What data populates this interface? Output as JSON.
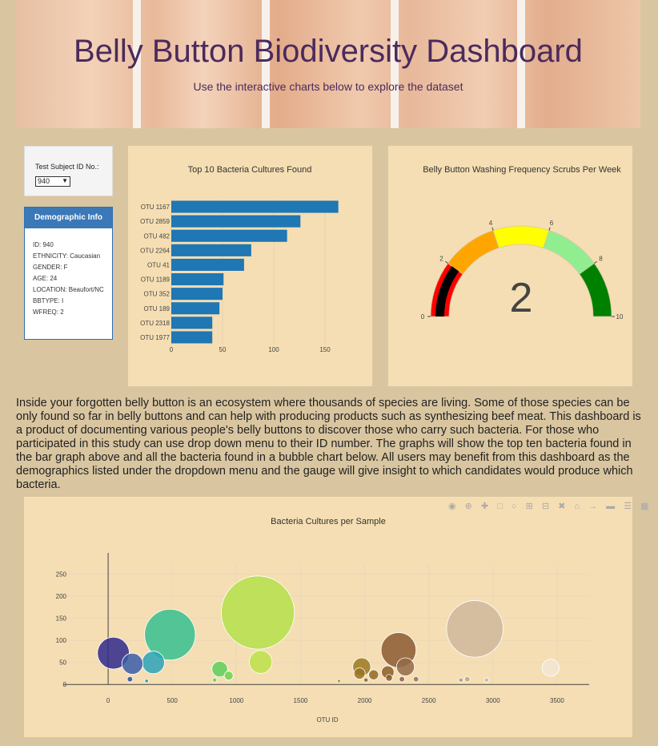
{
  "header": {
    "title": "Belly Button Biodiversity Dashboard",
    "subtitle": "Use the interactive charts below to explore the dataset"
  },
  "selector": {
    "label": "Test Subject ID No.:",
    "value": "940"
  },
  "demographics": {
    "title": "Demographic Info",
    "rows": [
      "ID: 940",
      "ETHNICITY: Caucasian",
      "GENDER: F",
      "AGE: 24",
      "LOCATION: Beaufort/NC",
      "BBTYPE: I",
      "WFREQ: 2"
    ]
  },
  "paragraph": "Inside your forgotten belly button is an ecosystem where thousands of species are living. Some of those species can be only found so far in belly buttons and can help with producing products such as synthesizing beef meat. This dashboard is a product of documenting various people's belly buttons to discover those who carry such bacteria. For those who participated in this study can use drop down menu to their ID number. The graphs will show the top ten bacteria found in the bar graph above and all the bacteria found in a bubble chart below. All users may benefit from this dashboard as the demographics listed under the dropdown menu and the gauge will give insight to which candidates would produce which bacteria.",
  "chart_data": [
    {
      "type": "bar",
      "title": "Top 10 Bacteria Cultures Found",
      "categories": [
        "OTU 1167",
        "OTU 2859",
        "OTU 482",
        "OTU 2264",
        "OTU 41",
        "OTU 1189",
        "OTU 352",
        "OTU 189",
        "OTU 2318",
        "OTU 1977"
      ],
      "values": [
        163,
        126,
        113,
        78,
        71,
        51,
        50,
        47,
        40,
        40
      ],
      "xlim": [
        0,
        175
      ],
      "xticks": [
        0,
        50,
        100,
        150
      ],
      "color": "#1f77b4"
    },
    {
      "type": "gauge",
      "title": "Belly Button Washing Frequency Scrubs Per Week",
      "value": 2,
      "range": [
        0,
        10
      ],
      "ticks": [
        0,
        2,
        4,
        6,
        8,
        10
      ],
      "bands": [
        {
          "from": 0,
          "to": 2,
          "color": "#ff0000"
        },
        {
          "from": 2,
          "to": 4,
          "color": "#ffa500"
        },
        {
          "from": 4,
          "to": 6,
          "color": "#ffff00"
        },
        {
          "from": 6,
          "to": 8,
          "color": "#90ee90"
        },
        {
          "from": 8,
          "to": 10,
          "color": "#008000"
        }
      ],
      "bar_color": "#000000"
    },
    {
      "type": "scatter",
      "title": "Bacteria Cultures per Sample",
      "xlabel": "OTU ID",
      "xticks": [
        0,
        500,
        1000,
        1500,
        2000,
        2500,
        3000,
        3500
      ],
      "yticks": [
        0,
        50,
        100,
        150,
        200,
        250
      ],
      "xlim": [
        -350,
        3750
      ],
      "ylim": [
        -5,
        280
      ],
      "points": [
        {
          "x": 41,
          "y": 71,
          "color": "#2f2a8c"
        },
        {
          "x": 189,
          "y": 47,
          "color": "#3a5ea8"
        },
        {
          "x": 352,
          "y": 50,
          "color": "#2aa3b8"
        },
        {
          "x": 482,
          "y": 113,
          "color": "#36c08f"
        },
        {
          "x": 170,
          "y": 12,
          "color": "#2c4ea0"
        },
        {
          "x": 300,
          "y": 8,
          "color": "#2a8ab8"
        },
        {
          "x": 870,
          "y": 35,
          "color": "#5ccf5a"
        },
        {
          "x": 940,
          "y": 20,
          "color": "#6fd44f"
        },
        {
          "x": 830,
          "y": 10,
          "color": "#70d048"
        },
        {
          "x": 1167,
          "y": 163,
          "color": "#b4e04a"
        },
        {
          "x": 1189,
          "y": 51,
          "color": "#bce24a"
        },
        {
          "x": 1800,
          "y": 8,
          "color": "#a39a3a"
        },
        {
          "x": 1977,
          "y": 40,
          "color": "#9c7a20"
        },
        {
          "x": 1960,
          "y": 25,
          "color": "#9a7320"
        },
        {
          "x": 2010,
          "y": 10,
          "color": "#8f6a20"
        },
        {
          "x": 2070,
          "y": 22,
          "color": "#8e6a28"
        },
        {
          "x": 2180,
          "y": 28,
          "color": "#8a5e2a"
        },
        {
          "x": 2190,
          "y": 15,
          "color": "#8b5c28"
        },
        {
          "x": 2264,
          "y": 78,
          "color": "#8c5a33"
        },
        {
          "x": 2318,
          "y": 40,
          "color": "#946a47"
        },
        {
          "x": 2290,
          "y": 12,
          "color": "#8f6040"
        },
        {
          "x": 2400,
          "y": 12,
          "color": "#9a7050"
        },
        {
          "x": 2750,
          "y": 10,
          "color": "#b59a80"
        },
        {
          "x": 2800,
          "y": 12,
          "color": "#bba488"
        },
        {
          "x": 2859,
          "y": 126,
          "color": "#cfb79c"
        },
        {
          "x": 2950,
          "y": 10,
          "color": "#cdb9a0"
        },
        {
          "x": 3450,
          "y": 38,
          "color": "#f3e6d6"
        }
      ]
    }
  ]
}
